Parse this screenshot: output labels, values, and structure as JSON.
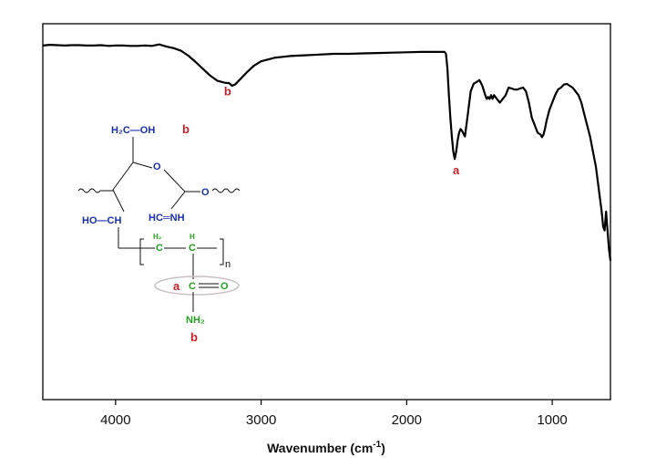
{
  "chart_data": {
    "type": "line",
    "title": "",
    "xlabel": "Wavenumber (cm",
    "xlabel_sup": "-1",
    "xlabel_end": ")",
    "ylabel": "",
    "xlim": [
      4500,
      600
    ],
    "ylim": [
      0,
      1
    ],
    "x_reversed": true,
    "grid": false,
    "x_ticks": [
      4000,
      3000,
      2000,
      1000
    ],
    "x_tick_labels": [
      "4000",
      "3000",
      "2000",
      "1000"
    ],
    "series": [
      {
        "x": [
          4500,
          4450,
          4400,
          4350,
          4300,
          4250,
          4200,
          4150,
          4100,
          4050,
          4000,
          3950,
          3900,
          3850,
          3800,
          3750,
          3700,
          3650,
          3600,
          3550,
          3500,
          3450,
          3400,
          3350,
          3300,
          3250,
          3220,
          3200,
          3180,
          3150,
          3100,
          3050,
          3000,
          2950,
          2900,
          2850,
          2800,
          2700,
          2600,
          2500,
          2400,
          2300,
          2200,
          2100,
          2000,
          1900,
          1800,
          1760,
          1740,
          1730,
          1720,
          1710,
          1700,
          1690,
          1680,
          1670,
          1660,
          1650,
          1640,
          1630,
          1620,
          1600,
          1580,
          1560,
          1540,
          1520,
          1500,
          1480,
          1460,
          1450,
          1440,
          1430,
          1420,
          1410,
          1400,
          1380,
          1360,
          1340,
          1320,
          1300,
          1280,
          1260,
          1240,
          1220,
          1200,
          1180,
          1160,
          1140,
          1120,
          1100,
          1080,
          1070,
          1060,
          1050,
          1040,
          1020,
          1000,
          980,
          960,
          940,
          920,
          900,
          880,
          860,
          840,
          820,
          800,
          780,
          760,
          740,
          720,
          700,
          680,
          660,
          650,
          640,
          630,
          620,
          610,
          600
        ],
        "y": [
          0.942,
          0.944,
          0.943,
          0.942,
          0.943,
          0.943,
          0.942,
          0.942,
          0.943,
          0.941,
          0.942,
          0.942,
          0.941,
          0.941,
          0.942,
          0.941,
          0.945,
          0.939,
          0.935,
          0.928,
          0.915,
          0.898,
          0.88,
          0.862,
          0.848,
          0.843,
          0.842,
          0.835,
          0.838,
          0.85,
          0.87,
          0.888,
          0.9,
          0.905,
          0.91,
          0.912,
          0.914,
          0.916,
          0.918,
          0.92,
          0.92,
          0.921,
          0.922,
          0.923,
          0.924,
          0.925,
          0.925,
          0.925,
          0.925,
          0.92,
          0.88,
          0.81,
          0.75,
          0.7,
          0.66,
          0.64,
          0.66,
          0.69,
          0.71,
          0.72,
          0.715,
          0.7,
          0.76,
          0.82,
          0.84,
          0.845,
          0.85,
          0.835,
          0.81,
          0.8,
          0.805,
          0.8,
          0.81,
          0.8,
          0.81,
          0.8,
          0.79,
          0.8,
          0.81,
          0.83,
          0.828,
          0.825,
          0.825,
          0.828,
          0.83,
          0.82,
          0.79,
          0.75,
          0.73,
          0.71,
          0.705,
          0.698,
          0.705,
          0.72,
          0.74,
          0.77,
          0.79,
          0.81,
          0.825,
          0.83,
          0.838,
          0.84,
          0.835,
          0.83,
          0.82,
          0.81,
          0.79,
          0.76,
          0.73,
          0.7,
          0.66,
          0.62,
          0.56,
          0.5,
          0.46,
          0.45,
          0.5,
          0.45,
          0.4,
          0.37
        ]
      }
    ],
    "annotations": [
      {
        "text": "b",
        "x": 3230,
        "y": 0.81
      },
      {
        "text": "a",
        "x": 1660,
        "y": 0.6
      }
    ]
  },
  "structure": {
    "ch2oh": "H₂C—OH",
    "ch2oh_b": "b",
    "ring_o": "O",
    "o_link": "O",
    "ho_ch": "HO—CH",
    "hc_nh": "HC═NH",
    "h2_c": "C",
    "h2_sup": "H₂",
    "h_c": "C",
    "h_sup": "H",
    "n": "n",
    "a_label": "a",
    "co_c": "C",
    "co_eq": "═",
    "co_o": "O",
    "nh2": "NH₂",
    "b_label": "b"
  },
  "colors": {
    "line": "#000000",
    "peak_label": "#c8202a",
    "chitosan": "#1a2fa8",
    "acrylamide": "#23a01f"
  }
}
